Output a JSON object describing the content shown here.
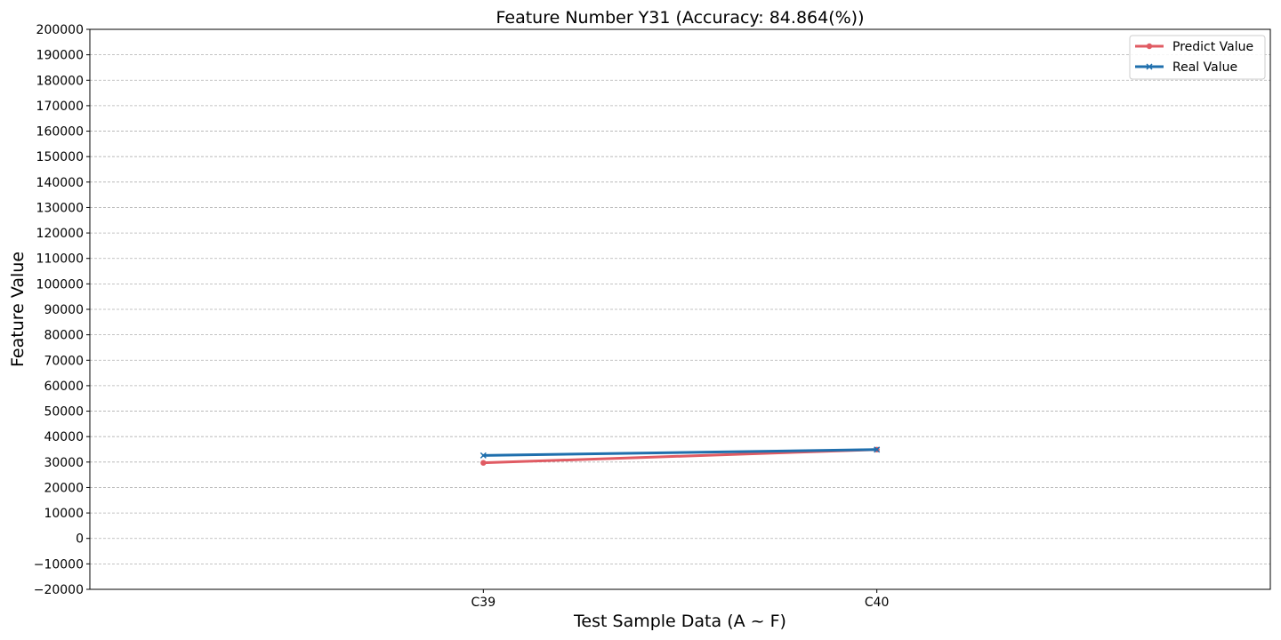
{
  "chart_data": {
    "type": "line",
    "title": "Feature Number Y31 (Accuracy: 84.864(%))",
    "xlabel": "Test Sample Data (A ~ F)",
    "ylabel": "Feature Value",
    "categories": [
      "C39",
      "C40"
    ],
    "xlim": [
      -1,
      2
    ],
    "ylim": [
      -20000,
      200000
    ],
    "yticks": [
      -20000,
      -10000,
      0,
      10000,
      20000,
      30000,
      40000,
      50000,
      60000,
      70000,
      80000,
      90000,
      100000,
      110000,
      120000,
      130000,
      140000,
      150000,
      160000,
      170000,
      180000,
      190000,
      200000
    ],
    "ytick_labels": [
      "−20000",
      "−10000",
      "0",
      "10000",
      "20000",
      "30000",
      "40000",
      "50000",
      "60000",
      "70000",
      "80000",
      "90000",
      "100000",
      "110000",
      "120000",
      "130000",
      "140000",
      "150000",
      "160000",
      "170000",
      "180000",
      "190000",
      "200000"
    ],
    "grid": "horizontal-dashed",
    "legend_position": "top-right",
    "series": [
      {
        "name": "Predict Value",
        "values": [
          29700,
          34900
        ],
        "color": "#e05b63",
        "marker": "circle"
      },
      {
        "name": "Real Value",
        "values": [
          32600,
          34900
        ],
        "color": "#1f6fad",
        "marker": "x"
      }
    ]
  }
}
